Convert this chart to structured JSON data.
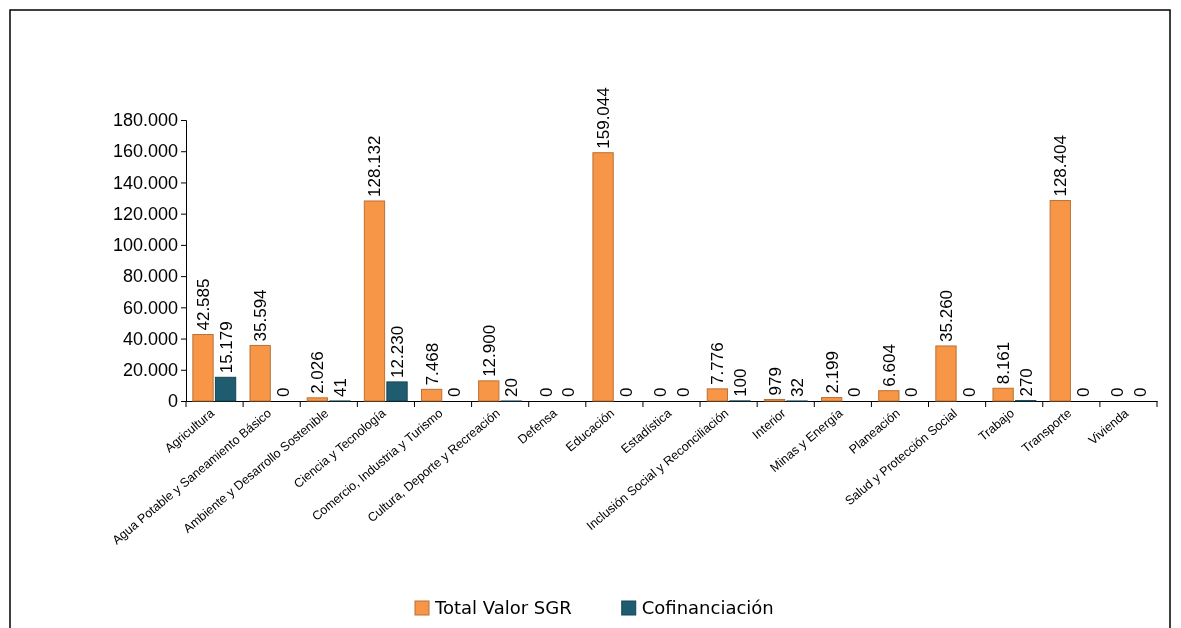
{
  "chart_data": {
    "type": "bar",
    "categories": [
      "Agricultura",
      "Agua Potable y Saneamiento Básico",
      "Ambiente y Desarrollo Sostenible",
      "Ciencia y Tecnología",
      "Comercio, Industria y Turismo",
      "Cultura, Deporte y Recreación",
      "Defensa",
      "Educación",
      "Estadística",
      "Inclusión Social y Reconciliación",
      "Interior",
      "Minas y Energía",
      "Planeación",
      "Salud y Protección Social",
      "Trabajo",
      "Transporte",
      "Vivienda"
    ],
    "series": [
      {
        "name": "Total Valor SGR",
        "color": "#f79646",
        "values": [
          42585,
          35594,
          2026,
          128132,
          7468,
          12900,
          0,
          159044,
          0,
          7776,
          979,
          2199,
          6604,
          35260,
          8161,
          128404,
          0
        ],
        "value_labels": [
          "42.585",
          "35.594",
          "2.026",
          "128.132",
          "7.468",
          "12.900",
          "0",
          "159.044",
          "0",
          "7.776",
          "979",
          "2.199",
          "6.604",
          "35.260",
          "8.161",
          "128.404",
          "0"
        ]
      },
      {
        "name": "Cofinanciación",
        "color": "#1f5c70",
        "values": [
          15179,
          0,
          41,
          12230,
          0,
          20,
          0,
          0,
          0,
          100,
          32,
          0,
          0,
          0,
          270,
          0,
          0
        ],
        "value_labels": [
          "15.179",
          "0",
          "41",
          "12.230",
          "0",
          "20",
          "0",
          "0",
          "0",
          "100",
          "32",
          "0",
          "0",
          "0",
          "270",
          "0",
          "0"
        ]
      }
    ],
    "ylim": [
      0,
      180000
    ],
    "yticks": [
      0,
      {
        "value": 20000,
        "label": "20.000"
      },
      {
        "value": 40000,
        "label": "40.000"
      },
      {
        "value": 60000,
        "label": "60.000"
      },
      {
        "value": 80000,
        "label": "80.000"
      },
      {
        "value": 100000,
        "label": "100.000"
      },
      {
        "value": 120000,
        "label": "120.000"
      },
      {
        "value": 140000,
        "label": "140.000"
      },
      {
        "value": 160000,
        "label": "160.000"
      },
      {
        "value": 180000,
        "label": "180.000"
      }
    ],
    "legend": "bottom"
  }
}
